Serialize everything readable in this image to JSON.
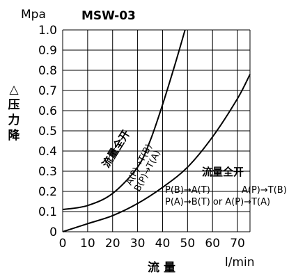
{
  "chart_data": {
    "type": "line",
    "title": "MSW-03",
    "y_unit": "Mpa",
    "ylabel": "△压力降",
    "xlabel": "流 量",
    "x_unit": "l/min",
    "xlim": [
      0,
      75
    ],
    "ylim": [
      0,
      1.0
    ],
    "x_ticks": [
      "0",
      "10",
      "20",
      "30",
      "40",
      "50",
      "60",
      "70"
    ],
    "y_ticks": [
      "0",
      "0.1",
      "0.2",
      "0.3",
      "0.4",
      "0.5",
      "0.6",
      "0.7",
      "0.8",
      "0.9",
      "1.0"
    ],
    "grid": true,
    "series": [
      {
        "points": [
          [
            0,
            0.11
          ],
          [
            10,
            0.13
          ],
          [
            20,
            0.19
          ],
          [
            30,
            0.32
          ],
          [
            35,
            0.45
          ],
          [
            40,
            0.63
          ],
          [
            45,
            0.83
          ],
          [
            49,
            1.0
          ]
        ]
      },
      {
        "points": [
          [
            0,
            0.0
          ],
          [
            10,
            0.04
          ],
          [
            20,
            0.08
          ],
          [
            30,
            0.14
          ],
          [
            40,
            0.22
          ],
          [
            50,
            0.32
          ],
          [
            60,
            0.47
          ],
          [
            70,
            0.66
          ],
          [
            75,
            0.78
          ]
        ]
      }
    ],
    "annotations": {
      "curve1_label": "流量全开",
      "curve1_line1": "A(P)→T(B)",
      "curve1_line2": "B(P)→T(A)",
      "curve2_label": "流量全开",
      "curve2_row1a": "P(B)→A(T)",
      "curve2_row1b": "A(P)→T(B)",
      "curve2_row2": "P(A)→B(T) or A(P)→T(A)"
    }
  }
}
